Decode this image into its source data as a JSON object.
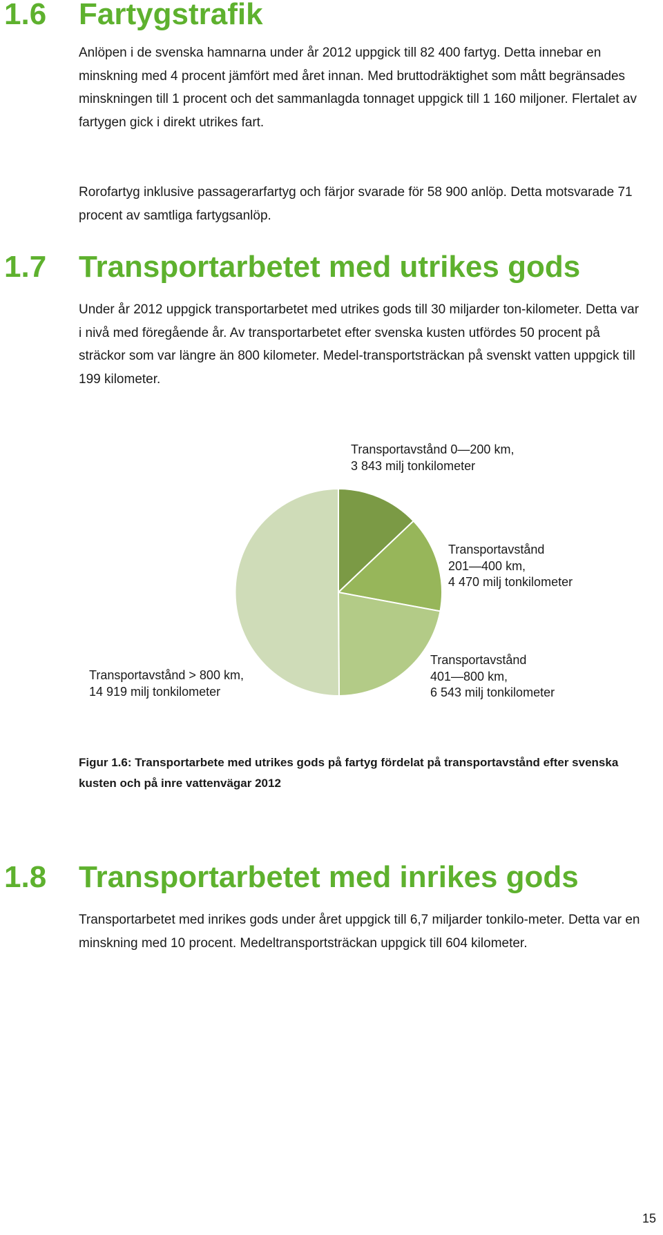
{
  "sections": [
    {
      "number": "1.6",
      "title": "Fartygstrafik",
      "paragraphs": [
        "Anlöpen i de svenska hamnarna under år 2012 uppgick till 82 400 fartyg. Detta innebar en minskning med 4 procent jämfört med året innan. Med bruttodräktighet som mått begränsades minskningen till 1 procent och det sammanlagda tonnaget uppgick till 1 160 miljoner. Flertalet av fartygen gick i direkt utrikes fart.",
        "Rorofartyg inklusive passagerarfartyg och färjor svarade för 58 900 anlöp. Detta motsvarade 71 procent av samtliga fartygsanlöp."
      ]
    },
    {
      "number": "1.7",
      "title": "Transportarbetet med utrikes gods",
      "paragraphs": [
        "Under år 2012 uppgick transportarbetet med utrikes gods till 30 miljarder ton-kilometer. Detta var i nivå med föregående år. Av transportarbetet efter svenska kusten utfördes 50 procent på sträckor som var längre än 800 kilometer. Medel-transportsträckan på svenskt vatten uppgick till 199 kilometer."
      ]
    },
    {
      "number": "1.8",
      "title": "Transportarbetet med inrikes gods",
      "paragraphs": [
        "Transportarbetet med inrikes gods under året uppgick till 6,7 miljarder tonkilo-meter. Detta var en minskning med 10 procent. Medeltransportsträckan uppgick till 604 kilometer."
      ]
    }
  ],
  "chart_data": {
    "type": "pie",
    "title": "",
    "unit": "milj tonkilometer",
    "slices": [
      {
        "label_lines": [
          "Transportavstånd 0—200 km,",
          "3 843 milj tonkilometer"
        ],
        "category": "Transportavstånd 0—200 km",
        "value": 3843,
        "color": "#7b9a45"
      },
      {
        "label_lines": [
          "Transportavstånd",
          "201—400 km,",
          "4 470 milj tonkilometer"
        ],
        "category": "Transportavstånd 201—400 km",
        "value": 4470,
        "color": "#97b65a"
      },
      {
        "label_lines": [
          "Transportavstånd",
          "401—800 km,",
          "6 543 milj tonkilometer"
        ],
        "category": "Transportavstånd 401—800 km",
        "value": 6543,
        "color": "#b3cb87"
      },
      {
        "label_lines": [
          "Transportavstånd > 800 km,",
          "14 919 milj tonkilometer"
        ],
        "category": "Transportavstånd > 800 km",
        "value": 14919,
        "color": "#cfdcb8"
      }
    ]
  },
  "caption": "Figur 1.6: Transportarbete med utrikes gods på fartyg fördelat på transportavstånd efter svenska kusten och på inre vattenvägar 2012",
  "page_number": "15",
  "colors": {
    "heading": "#5eb12e"
  }
}
